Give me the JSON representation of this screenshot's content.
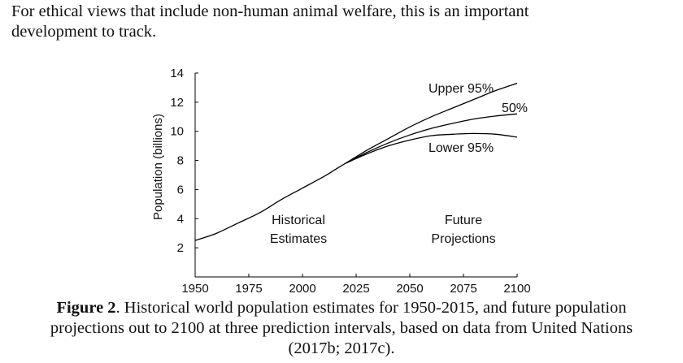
{
  "intro": {
    "line1": "For ethical views that include non-human animal welfare, this is an important",
    "line2": "development to track."
  },
  "caption": {
    "label": "Figure 2",
    "line1_rest": ". Historical world population estimates for 1950-2015, and future population",
    "line2": "projections out to 2100 at three prediction intervals, based on data from United Nations",
    "line3": "(2017b; 2017c)."
  },
  "chart_data": {
    "type": "line",
    "title": "",
    "xlabel": "",
    "ylabel": "Population (billions)",
    "xlim": [
      1950,
      2100
    ],
    "ylim": [
      0,
      14
    ],
    "x_ticks": [
      1950,
      1975,
      2000,
      2025,
      2050,
      2075,
      2100
    ],
    "y_ticks": [
      2,
      4,
      6,
      8,
      10,
      12,
      14
    ],
    "grid": false,
    "color": "#000000",
    "series": [
      {
        "name": "Historical",
        "x": [
          1950,
          1960,
          1970,
          1980,
          1990,
          2000,
          2010,
          2015,
          2020
        ],
        "y": [
          2.5,
          3.0,
          3.7,
          4.4,
          5.3,
          6.1,
          6.9,
          7.35,
          7.8
        ]
      },
      {
        "name": "Upper 95%",
        "x": [
          2020,
          2030,
          2040,
          2050,
          2060,
          2070,
          2080,
          2090,
          2100
        ],
        "y": [
          7.8,
          8.7,
          9.5,
          10.3,
          11.0,
          11.6,
          12.2,
          12.8,
          13.3
        ]
      },
      {
        "name": "50%",
        "x": [
          2020,
          2030,
          2040,
          2050,
          2060,
          2070,
          2080,
          2090,
          2100
        ],
        "y": [
          7.8,
          8.55,
          9.2,
          9.75,
          10.2,
          10.55,
          10.85,
          11.05,
          11.2
        ]
      },
      {
        "name": "Lower 95%",
        "x": [
          2020,
          2030,
          2040,
          2050,
          2060,
          2070,
          2080,
          2090,
          2100
        ],
        "y": [
          7.8,
          8.45,
          9.0,
          9.4,
          9.7,
          9.8,
          9.85,
          9.8,
          9.6
        ]
      }
    ],
    "annotations": {
      "upper": "Upper 95%",
      "median": "50%",
      "lower": "Lower 95%",
      "historical_line1": "Historical",
      "historical_line2": "Estimates",
      "future_line1": "Future",
      "future_line2": "Projections"
    }
  }
}
